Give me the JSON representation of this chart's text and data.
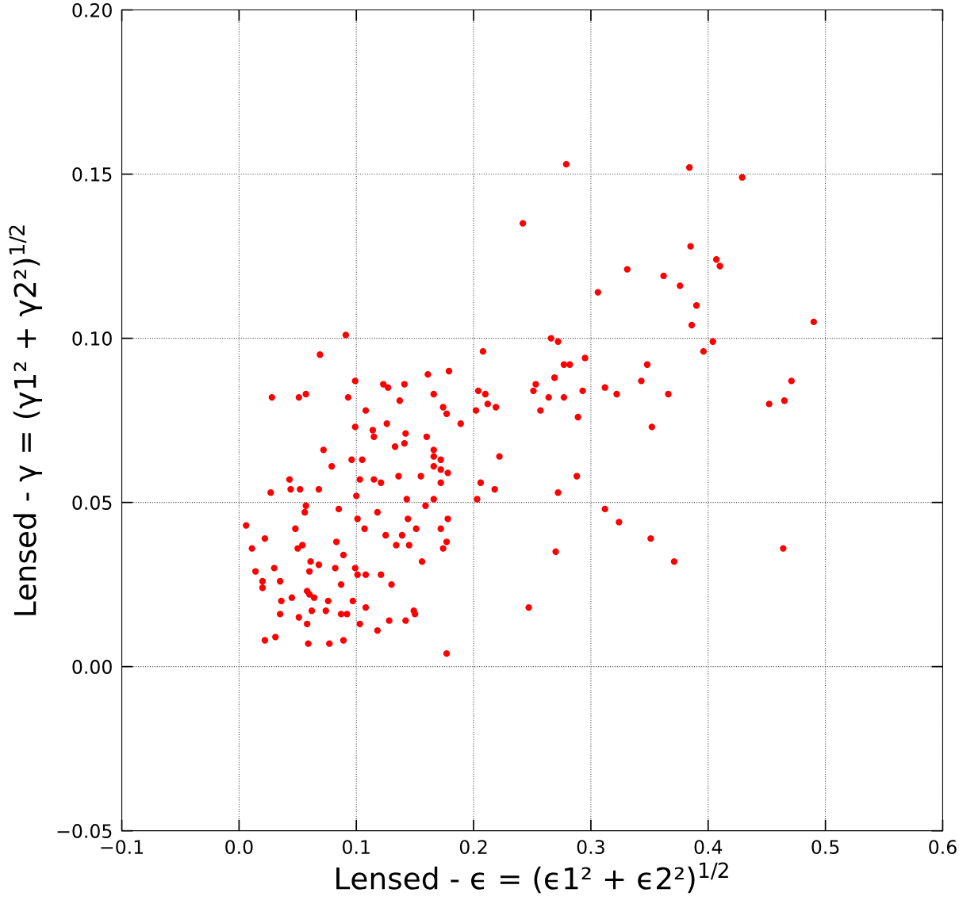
{
  "chart_data": {
    "type": "scatter",
    "xlabel": "Lensed - ϵ = (ϵ1² + ϵ2²)$^{1/2}$",
    "ylabel": "Lensed - γ = (γ1² + γ2²)$^{1/2}$",
    "xlim": [
      -0.1,
      0.6
    ],
    "ylim": [
      -0.05,
      0.2
    ],
    "xticks": [
      {
        "value": -0.1,
        "label": "−0.1"
      },
      {
        "value": 0.0,
        "label": "0.0"
      },
      0.1,
      0.2,
      0.3,
      0.4,
      0.5,
      0.6
    ],
    "yticks": [
      {
        "value": -0.05,
        "label": "−0.05"
      },
      {
        "value": 0.0,
        "label": "0.00"
      },
      0.05,
      {
        "value": 0.1,
        "label": "0.10"
      },
      0.15,
      {
        "value": 0.2,
        "label": "0.20"
      }
    ],
    "grid": true,
    "marker": "circle",
    "series": [
      {
        "color": "#ff0000",
        "x": [
          0.279,
          0.384,
          0.429,
          0.242,
          0.385,
          0.331,
          0.407,
          0.41,
          0.362,
          0.376,
          0.306,
          0.39,
          0.386,
          0.49,
          0.396,
          0.404,
          0.091,
          0.208,
          0.266,
          0.272,
          0.295,
          0.282,
          0.277,
          0.069,
          0.348,
          0.343,
          0.471,
          0.161,
          0.179,
          0.099,
          0.123,
          0.141,
          0.253,
          0.269,
          0.251,
          0.204,
          0.127,
          0.312,
          0.293,
          0.264,
          0.277,
          0.322,
          0.366,
          0.028,
          0.051,
          0.057,
          0.093,
          0.166,
          0.21,
          0.212,
          0.219,
          0.452,
          0.465,
          0.137,
          0.108,
          0.174,
          0.177,
          0.202,
          0.257,
          0.289,
          0.126,
          0.189,
          0.099,
          0.114,
          0.115,
          0.142,
          0.16,
          0.352,
          0.072,
          0.133,
          0.141,
          0.166,
          0.166,
          0.172,
          0.166,
          0.222,
          0.096,
          0.105,
          0.079,
          0.172,
          0.178,
          0.155,
          0.136,
          0.288,
          0.043,
          0.103,
          0.115,
          0.172,
          0.206,
          0.121,
          0.044,
          0.052,
          0.027,
          0.068,
          0.218,
          0.272,
          0.1,
          0.203,
          0.166,
          0.143,
          0.057,
          0.056,
          0.159,
          0.312,
          0.085,
          0.118,
          0.101,
          0.144,
          0.178,
          0.324,
          0.006,
          0.048,
          0.107,
          0.151,
          0.172,
          0.125,
          0.139,
          0.022,
          0.083,
          0.351,
          0.177,
          0.174,
          0.011,
          0.054,
          0.05,
          0.134,
          0.145,
          0.464,
          0.371,
          0.27,
          0.247,
          0.177,
          0.014,
          0.03,
          0.061,
          0.068,
          0.06,
          0.082,
          0.089,
          0.099,
          0.101,
          0.108,
          0.121,
          0.035,
          0.02,
          0.02,
          0.087,
          0.13,
          0.058,
          0.06,
          0.064,
          0.045,
          0.036,
          0.076,
          0.097,
          0.074,
          0.062,
          0.035,
          0.087,
          0.092,
          0.108,
          0.149,
          0.15,
          0.051,
          0.058,
          0.103,
          0.128,
          0.142,
          0.118,
          0.022,
          0.031,
          0.089,
          0.059,
          0.077,
          0.156
        ],
        "values": [
          0.153,
          0.152,
          0.149,
          0.135,
          0.128,
          0.121,
          0.124,
          0.122,
          0.119,
          0.116,
          0.114,
          0.11,
          0.104,
          0.105,
          0.096,
          0.099,
          0.101,
          0.096,
          0.1,
          0.099,
          0.094,
          0.092,
          0.092,
          0.095,
          0.092,
          0.087,
          0.087,
          0.089,
          0.09,
          0.087,
          0.086,
          0.086,
          0.086,
          0.088,
          0.084,
          0.084,
          0.085,
          0.085,
          0.084,
          0.082,
          0.082,
          0.083,
          0.083,
          0.082,
          0.082,
          0.083,
          0.082,
          0.083,
          0.083,
          0.08,
          0.079,
          0.08,
          0.081,
          0.081,
          0.078,
          0.079,
          0.077,
          0.078,
          0.078,
          0.076,
          0.074,
          0.074,
          0.073,
          0.072,
          0.07,
          0.071,
          0.07,
          0.073,
          0.066,
          0.067,
          0.068,
          0.066,
          0.064,
          0.063,
          0.061,
          0.064,
          0.063,
          0.063,
          0.061,
          0.06,
          0.059,
          0.058,
          0.058,
          0.058,
          0.057,
          0.057,
          0.057,
          0.056,
          0.056,
          0.056,
          0.054,
          0.054,
          0.053,
          0.054,
          0.054,
          0.053,
          0.052,
          0.051,
          0.051,
          0.051,
          0.049,
          0.047,
          0.049,
          0.048,
          0.048,
          0.047,
          0.045,
          0.045,
          0.045,
          0.044,
          0.043,
          0.042,
          0.042,
          0.042,
          0.042,
          0.04,
          0.04,
          0.039,
          0.038,
          0.039,
          0.038,
          0.036,
          0.036,
          0.037,
          0.036,
          0.037,
          0.037,
          0.036,
          0.032,
          0.035,
          0.018,
          0.004,
          0.029,
          0.03,
          0.032,
          0.031,
          0.029,
          0.03,
          0.034,
          0.03,
          0.028,
          0.028,
          0.028,
          0.026,
          0.026,
          0.024,
          0.025,
          0.025,
          0.023,
          0.022,
          0.021,
          0.021,
          0.02,
          0.02,
          0.02,
          0.017,
          0.017,
          0.016,
          0.016,
          0.016,
          0.018,
          0.017,
          0.016,
          0.015,
          0.013,
          0.013,
          0.014,
          0.014,
          0.011,
          0.008,
          0.009,
          0.008,
          0.007,
          0.007,
          0.032
        ]
      }
    ]
  }
}
